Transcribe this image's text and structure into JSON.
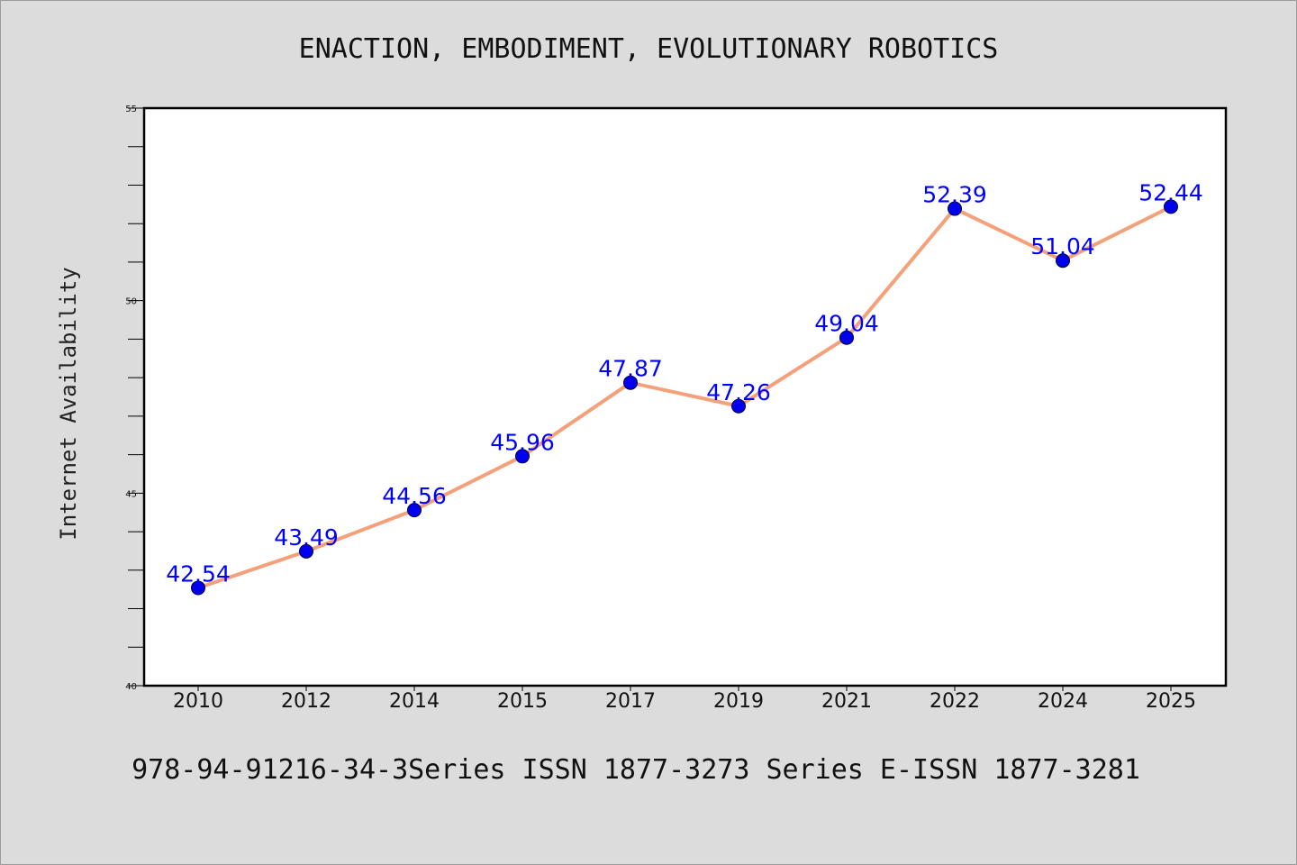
{
  "chart_data": {
    "type": "line",
    "title": "ENACTION, EMBODIMENT, EVOLUTIONARY ROBOTICS",
    "footer": "978-94-91216-34-3Series ISSN 1877-3273 Series E-ISSN 1877-3281",
    "xlabel": "",
    "ylabel": "Internet Availability",
    "categories": [
      "2010",
      "2012",
      "2014",
      "2015",
      "2017",
      "2019",
      "2021",
      "2022",
      "2024",
      "2025"
    ],
    "series": [
      {
        "values": [
          42.54,
          43.49,
          44.56,
          45.96,
          47.87,
          47.26,
          49.04,
          52.39,
          51.04,
          52.44
        ],
        "labels": [
          "42.54",
          "43.49",
          "44.56",
          "45.96",
          "47.87",
          "47.26",
          "49.04",
          "52.39",
          "51.04",
          "52.44"
        ]
      }
    ],
    "ylim": [
      40,
      55
    ],
    "yticks": [
      "40",
      "45",
      "50",
      "55"
    ],
    "grid": false,
    "legend": "none",
    "colors": {
      "line": "#f4a07a",
      "marker": "#0000ee",
      "marker_edge": "#000033",
      "label": "#0000ff",
      "background": "#dcdcdc",
      "plot_background": "#ffffff"
    }
  }
}
